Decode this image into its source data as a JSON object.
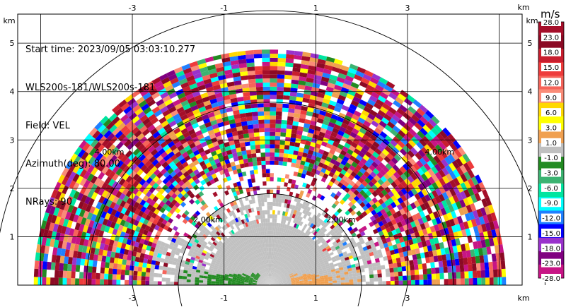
{
  "info": {
    "start_time": "Start time: 2023/09/05 03:03:10.277",
    "instrument": "WLS200s-181/WLS200s-181",
    "field": "Field: VEL",
    "azimuth": "Azimuth(deg): 80.00",
    "nrays": "NRays: 90"
  },
  "colorbar": {
    "units_label": "m/s",
    "labels": [
      "28.0",
      "23.0",
      "18.0",
      "15.0",
      "12.0",
      "9.0",
      "6.0",
      "3.0",
      "1.0",
      "-1.0",
      "-3.0",
      "-6.0",
      "-9.0",
      "-12.0",
      "-15.0",
      "-18.0",
      "-23.0",
      "-28.0"
    ],
    "colors": [
      "#a50f2a",
      "#8b0a24",
      "#c81e2e",
      "#ee3b3b",
      "#f5645a",
      "#fa8c78",
      "#ffd800",
      "#ffff00",
      "#f0a050",
      "#c0c0c0",
      "#228b22",
      "#3cb371",
      "#00e5a0",
      "#00ffff",
      "#2080ff",
      "#0000ff",
      "#9932cc",
      "#800080",
      "#c71585"
    ]
  },
  "chart_data": {
    "type": "ppi_rhi_scan",
    "field": "VEL",
    "units": "m/s",
    "xlabel": "km",
    "ylabel": "km",
    "xlim": [
      -5.5,
      5.5
    ],
    "ylim": [
      0,
      5.6
    ],
    "x_ticks": [
      "-3",
      "-1",
      "1",
      "3"
    ],
    "y_ticks": [
      "1",
      "2",
      "3",
      "4",
      "5"
    ],
    "range_rings_km": [
      2,
      4,
      6
    ],
    "ring_labels": [
      "2.00km",
      "2.00km",
      "4.00km",
      "4.00km"
    ],
    "max_range_km": 5.1,
    "nrays": 90,
    "grid": true
  }
}
